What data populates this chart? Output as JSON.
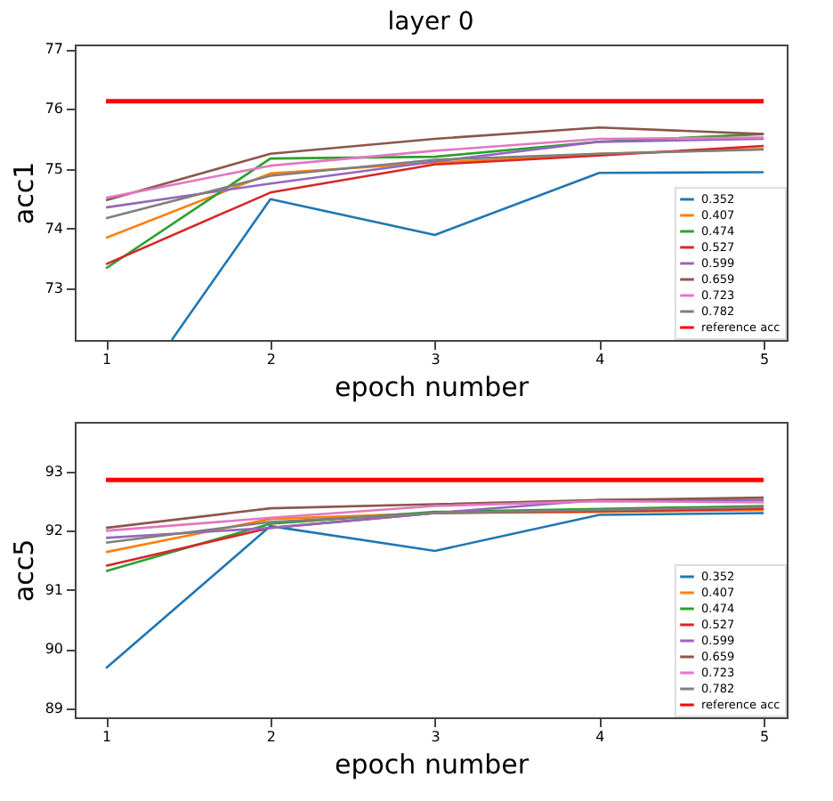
{
  "chart_data": [
    {
      "type": "line",
      "title": "layer 0",
      "xlabel": "epoch number",
      "ylabel": "acc1",
      "x": [
        1,
        2,
        3,
        4,
        5
      ],
      "xlim": [
        0.81,
        5.14
      ],
      "xticks": [
        1,
        2,
        3,
        4,
        5
      ],
      "ylim": [
        72.13,
        77.08
      ],
      "yticks": [
        73,
        74,
        75,
        76,
        77
      ],
      "grid": false,
      "legend": "bottom right",
      "series": [
        {
          "name": "0.352",
          "color": "#1f77b4",
          "x": [
            1.4,
            2,
            3,
            4,
            5
          ],
          "values": [
            72.13,
            74.49,
            73.89,
            74.93,
            74.94
          ]
        },
        {
          "name": "0.407",
          "color": "#ff7f0e",
          "values": [
            73.84,
            74.92,
            75.1,
            75.25,
            75.33
          ]
        },
        {
          "name": "0.474",
          "color": "#2ca02c",
          "values": [
            73.33,
            75.17,
            75.2,
            75.45,
            75.58
          ]
        },
        {
          "name": "0.527",
          "color": "#d62728",
          "values": [
            73.4,
            74.6,
            75.07,
            75.22,
            75.38
          ]
        },
        {
          "name": "0.599",
          "color": "#9467bd",
          "values": [
            74.35,
            74.75,
            75.12,
            75.45,
            75.5
          ]
        },
        {
          "name": "0.659",
          "color": "#8c564b",
          "values": [
            74.47,
            75.25,
            75.5,
            75.69,
            75.58
          ]
        },
        {
          "name": "0.723",
          "color": "#e377c2",
          "values": [
            74.51,
            75.05,
            75.3,
            75.5,
            75.52
          ]
        },
        {
          "name": "0.782",
          "color": "#7f7f7f",
          "values": [
            74.17,
            74.88,
            75.15,
            75.25,
            75.32
          ]
        }
      ],
      "ref_lines": [
        {
          "axis": "y",
          "value": 76.13,
          "label": "reference acc",
          "color": "#ff0000"
        }
      ]
    },
    {
      "type": "line",
      "xlabel": "epoch number",
      "ylabel": "acc5",
      "x": [
        1,
        2,
        3,
        4,
        5
      ],
      "xlim": [
        0.81,
        5.14
      ],
      "xticks": [
        1,
        2,
        3,
        4,
        5
      ],
      "ylim": [
        88.85,
        93.84
      ],
      "yticks": [
        89,
        90,
        91,
        92,
        93
      ],
      "grid": false,
      "legend": "bottom right",
      "series": [
        {
          "name": "0.352",
          "color": "#1f77b4",
          "values": [
            89.68,
            92.08,
            91.66,
            92.27,
            92.3
          ]
        },
        {
          "name": "0.407",
          "color": "#ff7f0e",
          "values": [
            91.64,
            92.2,
            92.3,
            92.32,
            92.35
          ]
        },
        {
          "name": "0.474",
          "color": "#2ca02c",
          "values": [
            91.32,
            92.12,
            92.32,
            92.37,
            92.42
          ]
        },
        {
          "name": "0.527",
          "color": "#d62728",
          "values": [
            91.41,
            92.05,
            92.3,
            92.33,
            92.37
          ]
        },
        {
          "name": "0.599",
          "color": "#9467bd",
          "values": [
            91.88,
            92.05,
            92.3,
            92.52,
            92.52
          ]
        },
        {
          "name": "0.659",
          "color": "#8c564b",
          "values": [
            92.05,
            92.38,
            92.45,
            92.52,
            92.56
          ]
        },
        {
          "name": "0.723",
          "color": "#e377c2",
          "values": [
            92.0,
            92.22,
            92.42,
            92.5,
            92.48
          ]
        },
        {
          "name": "0.782",
          "color": "#7f7f7f",
          "values": [
            91.8,
            92.15,
            92.3,
            92.35,
            92.4
          ]
        }
      ],
      "ref_lines": [
        {
          "axis": "y",
          "value": 92.86,
          "label": "reference acc",
          "color": "#ff0000"
        }
      ]
    }
  ]
}
